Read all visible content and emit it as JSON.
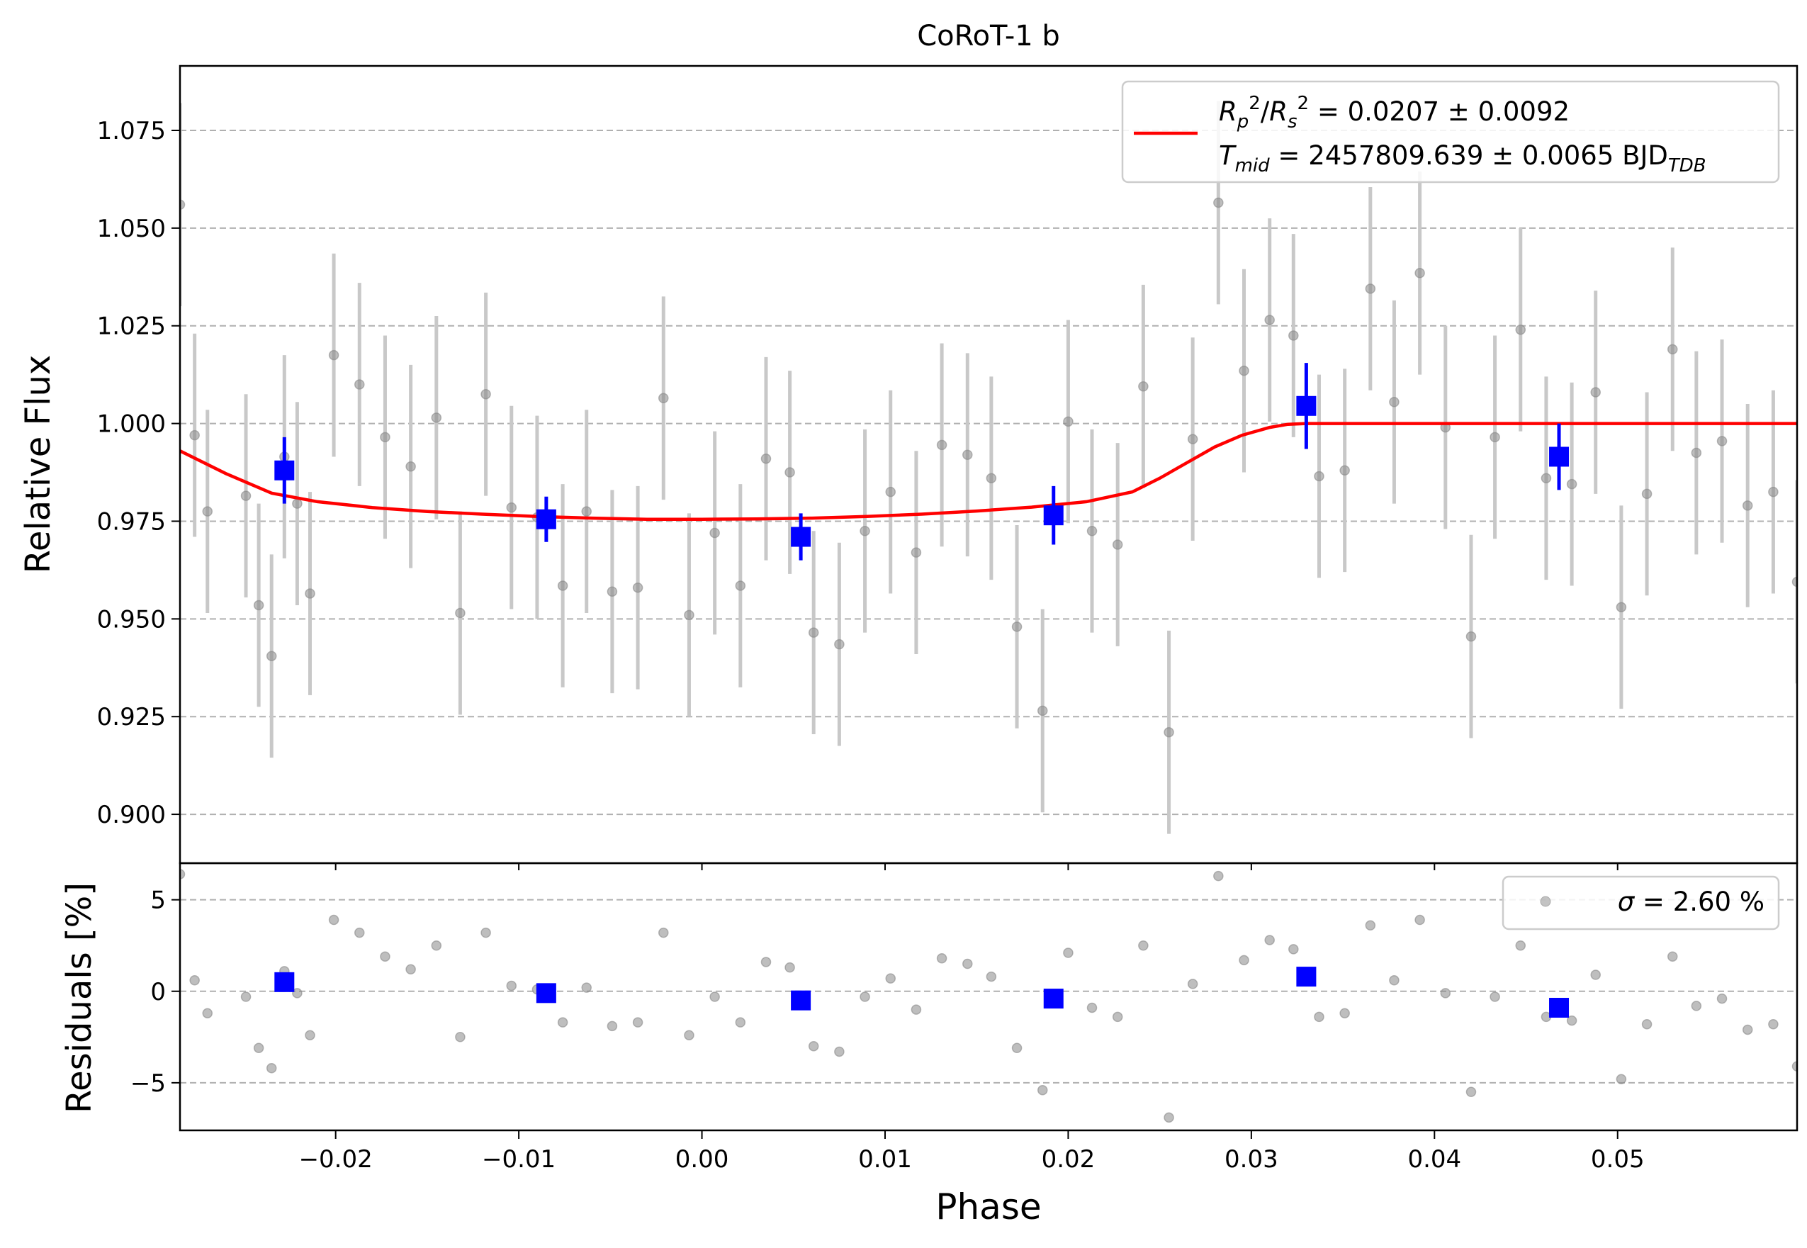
{
  "figure": {
    "title": "CoRoT-1 b",
    "xlabel": "Phase",
    "colors": {
      "raw": "#888888",
      "raw_err": "#c8c8c8",
      "binned": "#0000ff",
      "model": "#ff0000",
      "grid": "#b0b0b0"
    }
  },
  "chart_data": [
    {
      "type": "scatter",
      "title": "CoRoT-1 b",
      "xlabel": "Phase",
      "ylabel": "Relative Flux",
      "xlim": [
        -0.0285,
        0.0598
      ],
      "ylim": [
        0.8875,
        1.0915
      ],
      "grid": "horizontal dashed",
      "legend_position": "top-right",
      "legend": {
        "line1": {
          "lhs_R": "R",
          "lhs_p": "p",
          "lhs_2a": "2",
          "lhs_slash": "/",
          "lhs_R2": "R",
          "lhs_s": "s",
          "lhs_2b": "2",
          "rhs": " = 0.0207 ± 0.0092"
        },
        "line2": {
          "T": "T",
          "mid": "mid",
          "rhs": " = 2457809.639 ± 0.0065 BJD",
          "sub": "TDB"
        }
      },
      "xticks": [
        -0.02,
        -0.01,
        0.0,
        0.01,
        0.02,
        0.03,
        0.04,
        0.05
      ],
      "xticklabels": [
        "−0.02",
        "−0.01",
        "0.00",
        "0.01",
        "0.02",
        "0.03",
        "0.04",
        "0.05"
      ],
      "yticks": [
        0.9,
        0.925,
        0.95,
        0.975,
        1.0,
        1.025,
        1.05,
        1.075
      ],
      "yticklabels": [
        "0.900",
        "0.925",
        "0.950",
        "0.975",
        "1.000",
        "1.025",
        "1.050",
        "1.075"
      ],
      "raw_points": {
        "err": 0.026,
        "x": [
          -0.0285,
          -0.0277,
          -0.027,
          -0.0249,
          -0.0242,
          -0.0235,
          -0.0228,
          -0.0221,
          -0.0214,
          -0.0201,
          -0.0187,
          -0.0173,
          -0.0159,
          -0.0145,
          -0.0132,
          -0.0118,
          -0.0104,
          -0.009,
          -0.0076,
          -0.0063,
          -0.0049,
          -0.0035,
          -0.0021,
          -0.0007,
          0.0007,
          0.0021,
          0.0035,
          0.0048,
          0.0061,
          0.0075,
          0.0089,
          0.0103,
          0.0117,
          0.0131,
          0.0145,
          0.0158,
          0.0172,
          0.0186,
          0.02,
          0.0213,
          0.0227,
          0.0241,
          0.0255,
          0.0268,
          0.0282,
          0.0296,
          0.031,
          0.0323,
          0.0337,
          0.0351,
          0.0365,
          0.0378,
          0.0392,
          0.0406,
          0.042,
          0.0433,
          0.0447,
          0.0461,
          0.0475,
          0.0488,
          0.0502,
          0.0516,
          0.053,
          0.0543,
          0.0557,
          0.0571,
          0.0585,
          0.0598
        ],
        "y": [
          1.056,
          0.997,
          0.9775,
          0.9815,
          0.9535,
          0.9405,
          0.9915,
          0.9795,
          0.9565,
          1.0175,
          1.01,
          0.9965,
          0.989,
          1.0015,
          0.9515,
          1.0075,
          0.9785,
          0.976,
          0.9585,
          0.9775,
          0.957,
          0.958,
          1.0065,
          0.951,
          0.972,
          0.9585,
          0.991,
          0.9875,
          0.9465,
          0.9435,
          0.9725,
          0.9825,
          0.967,
          0.9945,
          0.992,
          0.986,
          0.948,
          0.9265,
          1.0005,
          0.9725,
          0.969,
          1.0095,
          0.921,
          0.996,
          1.0565,
          1.0135,
          1.0265,
          1.0225,
          0.9865,
          0.988,
          1.0345,
          1.0055,
          1.0385,
          0.999,
          0.9455,
          0.9965,
          1.024,
          0.986,
          0.9845,
          1.008,
          0.953,
          0.982,
          1.019,
          0.9925,
          0.9955,
          0.979,
          0.9825,
          0.9595
        ]
      },
      "binned_points": {
        "x": [
          -0.0228,
          -0.0085,
          0.0054,
          0.0192,
          0.033,
          0.0468
        ],
        "y": [
          0.988,
          0.9755,
          0.971,
          0.9765,
          1.0045,
          0.9915
        ],
        "err": [
          0.0085,
          0.0058,
          0.006,
          0.0075,
          0.011,
          0.0085
        ]
      },
      "model": {
        "x": [
          -0.0285,
          -0.026,
          -0.0235,
          -0.021,
          -0.018,
          -0.015,
          -0.012,
          -0.009,
          -0.006,
          -0.003,
          0.0,
          0.003,
          0.006,
          0.009,
          0.012,
          0.015,
          0.018,
          0.021,
          0.0235,
          0.025,
          0.0265,
          0.028,
          0.0295,
          0.031,
          0.032,
          0.033,
          0.034,
          0.0598
        ],
        "y": [
          0.993,
          0.9872,
          0.9822,
          0.98,
          0.9785,
          0.9775,
          0.9768,
          0.9762,
          0.9758,
          0.9755,
          0.9755,
          0.9756,
          0.9758,
          0.9762,
          0.9768,
          0.9776,
          0.9786,
          0.98,
          0.9825,
          0.986,
          0.99,
          0.994,
          0.997,
          0.999,
          0.9998,
          1.0,
          1.0,
          1.0
        ]
      }
    },
    {
      "type": "scatter",
      "ylabel": "Residuals [%]",
      "xlabel": "Phase",
      "xlim": [
        -0.0285,
        0.0598
      ],
      "ylim": [
        -7.6,
        7.0
      ],
      "grid": "horizontal dashed",
      "legend_position": "top-right",
      "legend": {
        "sigma": "σ",
        "text": " = 2.60 %"
      },
      "yticks": [
        -5,
        0,
        5
      ],
      "yticklabels": [
        "−5",
        "0",
        "5"
      ],
      "raw_residuals": [
        6.4,
        0.6,
        -1.2,
        -0.3,
        -3.1,
        -4.2,
        1.1,
        -0.1,
        -2.4,
        3.9,
        3.2,
        1.9,
        1.2,
        2.5,
        -2.5,
        3.2,
        0.3,
        0.1,
        -1.7,
        0.2,
        -1.9,
        -1.7,
        3.2,
        -2.4,
        -0.3,
        -1.7,
        1.6,
        1.3,
        -3.0,
        -3.3,
        -0.3,
        0.7,
        -1.0,
        1.8,
        1.5,
        0.8,
        -3.1,
        -5.4,
        2.1,
        -0.9,
        -1.4,
        2.5,
        -6.9,
        0.4,
        6.3,
        1.7,
        2.8,
        2.3,
        -1.4,
        -1.2,
        3.6,
        0.6,
        3.9,
        -0.1,
        -5.5,
        -0.3,
        2.5,
        -1.4,
        -1.6,
        0.9,
        -4.8,
        -1.8,
        1.9,
        -0.8,
        -0.4,
        -2.1,
        -1.8,
        -4.1
      ],
      "binned_residuals": [
        0.5,
        -0.1,
        -0.5,
        -0.4,
        0.8,
        -0.9
      ]
    }
  ]
}
